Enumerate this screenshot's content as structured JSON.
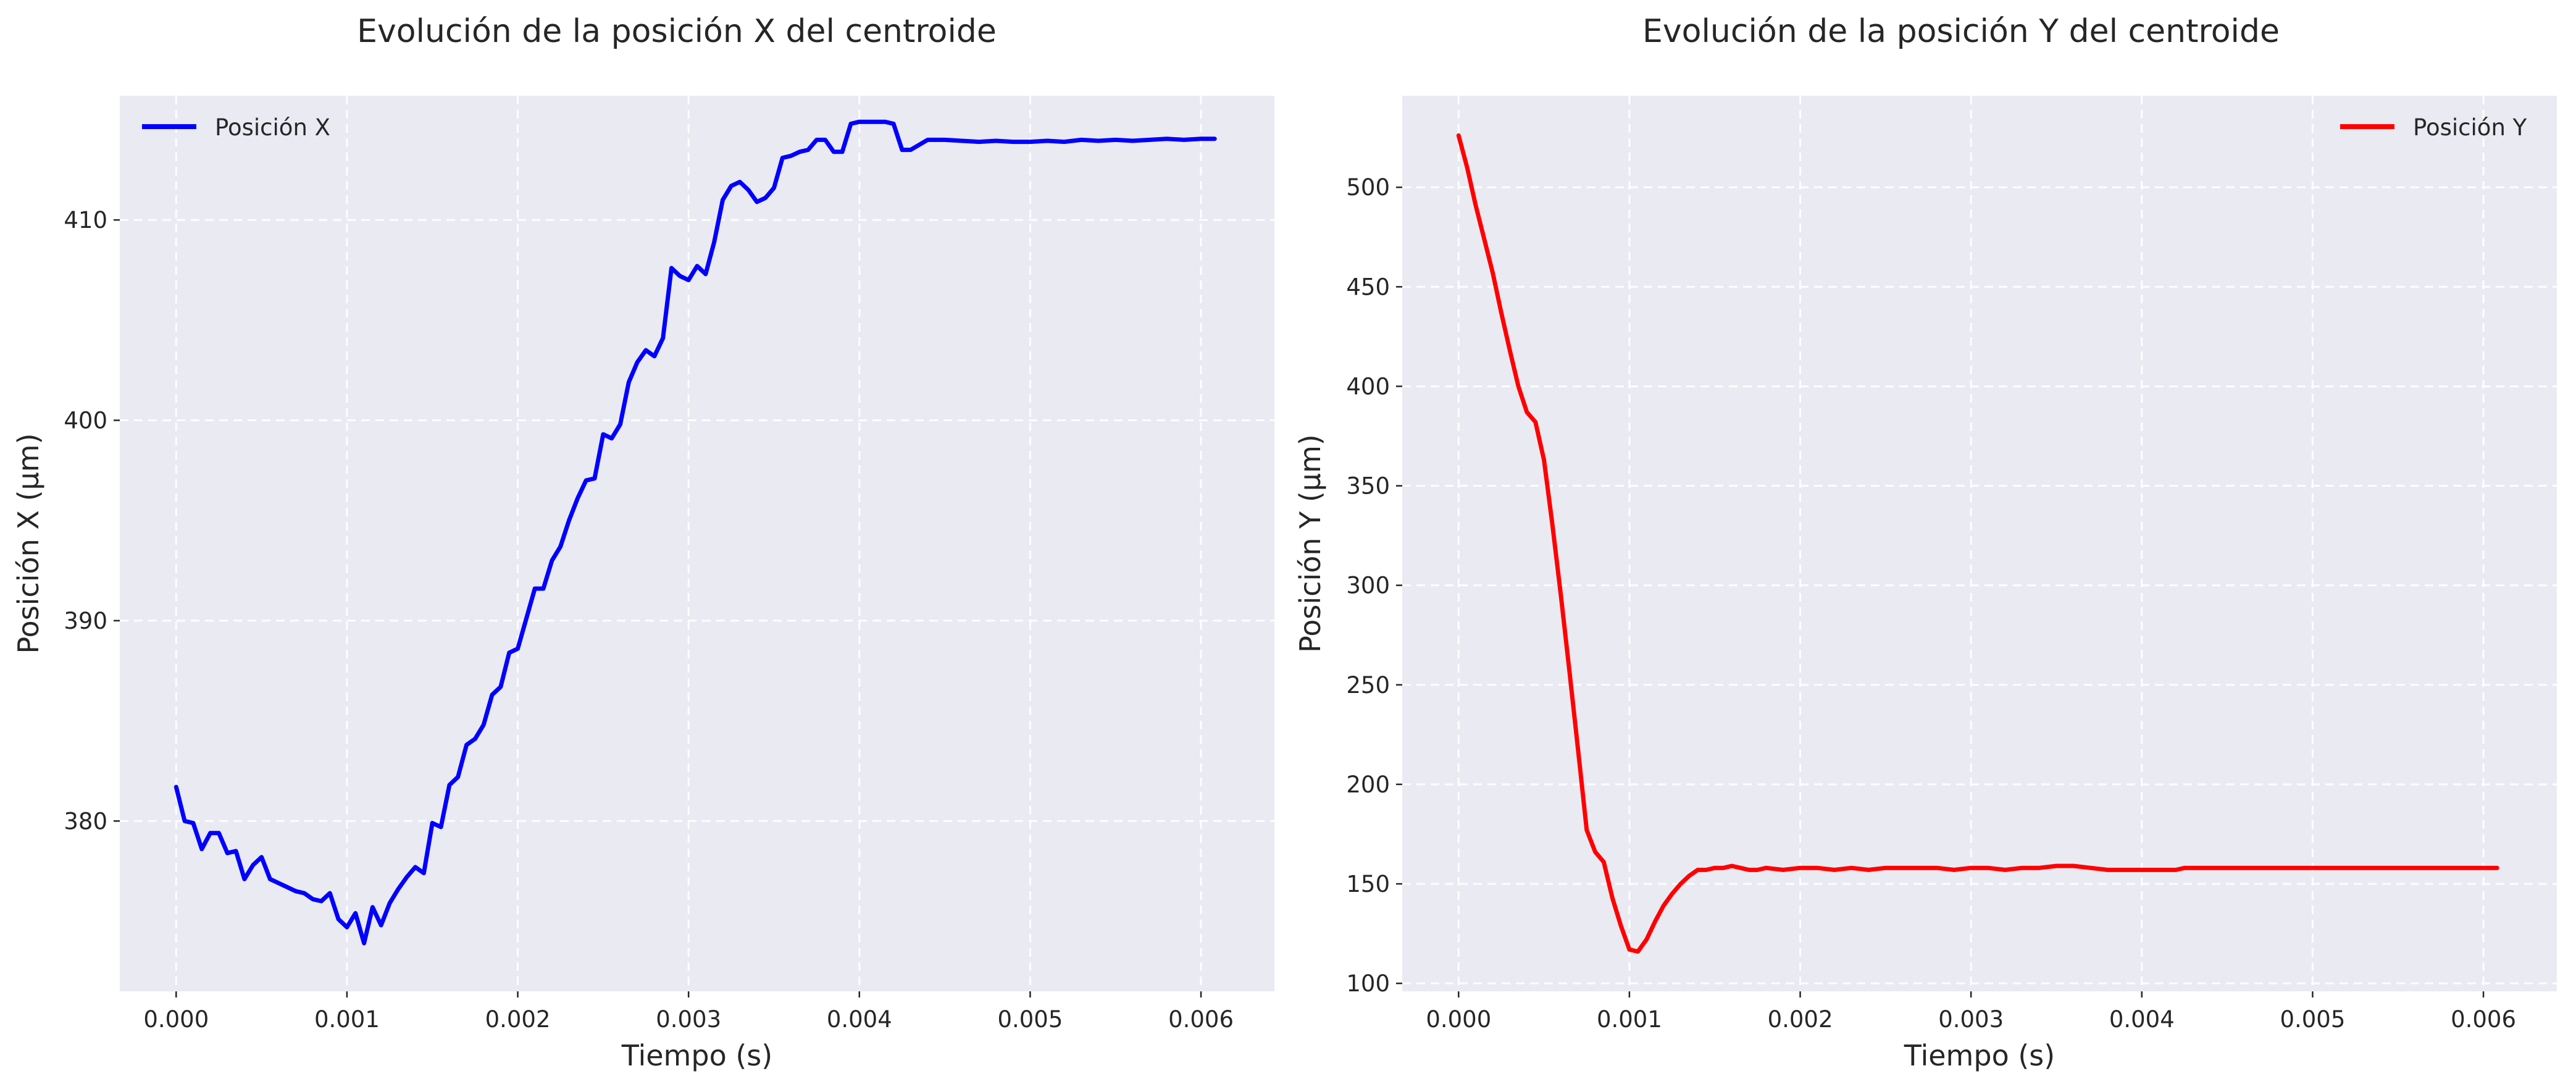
{
  "chart_data": [
    {
      "type": "line",
      "title": "Evolución de la posición X del centroide",
      "xlabel": "Tiempo (s)",
      "ylabel": "Posición X (µm)",
      "xlim": [
        -0.00033,
        0.00643
      ],
      "ylim": [
        371.5,
        416.2
      ],
      "xticks": [
        0.0,
        0.001,
        0.002,
        0.003,
        0.004,
        0.005,
        0.006
      ],
      "xtick_labels": [
        "0.000",
        "0.001",
        "0.002",
        "0.003",
        "0.004",
        "0.005",
        "0.006"
      ],
      "yticks": [
        380,
        390,
        400,
        410
      ],
      "ytick_labels": [
        "380",
        "390",
        "400",
        "410"
      ],
      "grid": true,
      "legend_position": "top-left",
      "series": [
        {
          "name": "Posición X",
          "color": "#0000ff",
          "x": [
            0.0,
            5e-05,
            0.0001,
            0.00015,
            0.0002,
            0.00025,
            0.0003,
            0.00035,
            0.0004,
            0.00045,
            0.0005,
            0.00055,
            0.0006,
            0.00065,
            0.0007,
            0.00075,
            0.0008,
            0.00085,
            0.0009,
            0.00095,
            0.001,
            0.00105,
            0.0011,
            0.00115,
            0.0012,
            0.00125,
            0.0013,
            0.00135,
            0.0014,
            0.00145,
            0.0015,
            0.00155,
            0.0016,
            0.00165,
            0.0017,
            0.00175,
            0.0018,
            0.00185,
            0.0019,
            0.00195,
            0.002,
            0.00205,
            0.0021,
            0.00215,
            0.0022,
            0.00225,
            0.0023,
            0.00235,
            0.0024,
            0.00245,
            0.0025,
            0.00255,
            0.0026,
            0.00265,
            0.0027,
            0.00275,
            0.0028,
            0.00285,
            0.0029,
            0.00295,
            0.003,
            0.00305,
            0.0031,
            0.00315,
            0.0032,
            0.00325,
            0.0033,
            0.00335,
            0.0034,
            0.00345,
            0.0035,
            0.00355,
            0.0036,
            0.00365,
            0.0037,
            0.00375,
            0.0038,
            0.00385,
            0.0039,
            0.00395,
            0.004,
            0.00405,
            0.0041,
            0.00415,
            0.0042,
            0.00425,
            0.0043,
            0.0044,
            0.0045,
            0.0046,
            0.0047,
            0.0048,
            0.0049,
            0.005,
            0.0051,
            0.0052,
            0.0053,
            0.0054,
            0.0055,
            0.0056,
            0.0057,
            0.0058,
            0.0059,
            0.006,
            0.00608
          ],
          "y": [
            381.7,
            380.0,
            379.9,
            378.6,
            379.4,
            379.4,
            378.4,
            378.5,
            377.1,
            377.8,
            378.2,
            377.1,
            376.9,
            376.7,
            376.5,
            376.4,
            376.1,
            376.0,
            376.4,
            375.1,
            374.7,
            375.4,
            373.9,
            375.7,
            374.8,
            375.9,
            376.6,
            377.2,
            377.7,
            377.4,
            379.9,
            379.7,
            381.8,
            382.2,
            383.8,
            384.1,
            384.8,
            386.3,
            386.7,
            388.4,
            388.6,
            390.1,
            391.6,
            391.6,
            393.0,
            393.7,
            395.0,
            396.1,
            397.0,
            397.1,
            399.3,
            399.1,
            399.8,
            401.9,
            402.9,
            403.5,
            403.2,
            404.1,
            407.6,
            407.2,
            407.0,
            407.7,
            407.3,
            408.9,
            411.0,
            411.7,
            411.9,
            411.5,
            410.9,
            411.1,
            411.6,
            413.1,
            413.2,
            413.4,
            413.5,
            414.0,
            414.0,
            413.4,
            413.4,
            414.8,
            414.9,
            414.9,
            414.9,
            414.9,
            414.8,
            413.5,
            413.5,
            414.0,
            414.0,
            413.95,
            413.9,
            413.95,
            413.9,
            413.9,
            413.95,
            413.9,
            414.0,
            413.95,
            414.0,
            413.95,
            414.0,
            414.05,
            414.0,
            414.05,
            414.05
          ]
        }
      ]
    },
    {
      "type": "line",
      "title": "Evolución de la posición Y del centroide",
      "xlabel": "Tiempo (s)",
      "ylabel": "Posición Y (µm)",
      "xlim": [
        -0.00033,
        0.00643
      ],
      "ylim": [
        96.0,
        546.0
      ],
      "xticks": [
        0.0,
        0.001,
        0.002,
        0.003,
        0.004,
        0.005,
        0.006
      ],
      "xtick_labels": [
        "0.000",
        "0.001",
        "0.002",
        "0.003",
        "0.004",
        "0.005",
        "0.006"
      ],
      "yticks": [
        100,
        150,
        200,
        250,
        300,
        350,
        400,
        450,
        500
      ],
      "ytick_labels": [
        "100",
        "150",
        "200",
        "250",
        "300",
        "350",
        "400",
        "450",
        "500"
      ],
      "grid": true,
      "legend_position": "top-right",
      "series": [
        {
          "name": "Posición Y",
          "color": "#ff0000",
          "x": [
            0.0,
            5e-05,
            0.0001,
            0.00015,
            0.0002,
            0.00025,
            0.0003,
            0.00035,
            0.0004,
            0.00045,
            0.0005,
            0.00055,
            0.0006,
            0.00065,
            0.0007,
            0.00075,
            0.0008,
            0.00085,
            0.0009,
            0.00095,
            0.001,
            0.00105,
            0.0011,
            0.00115,
            0.0012,
            0.00125,
            0.0013,
            0.00135,
            0.0014,
            0.00145,
            0.0015,
            0.00155,
            0.0016,
            0.00165,
            0.0017,
            0.00175,
            0.0018,
            0.0019,
            0.002,
            0.0021,
            0.0022,
            0.0023,
            0.0024,
            0.0025,
            0.0026,
            0.0027,
            0.0028,
            0.0029,
            0.003,
            0.0031,
            0.0032,
            0.0033,
            0.0034,
            0.0035,
            0.0036,
            0.0037,
            0.0038,
            0.0039,
            0.004,
            0.0041,
            0.0042,
            0.00425,
            0.0043,
            0.0044,
            0.0045,
            0.0046,
            0.0047,
            0.0048,
            0.0049,
            0.005,
            0.0052,
            0.0054,
            0.0056,
            0.0058,
            0.006,
            0.00608
          ],
          "y": [
            526.0,
            510.0,
            491.0,
            474.0,
            457.0,
            437.0,
            418.0,
            400.0,
            387.0,
            382.0,
            363.0,
            330.0,
            294.0,
            256.0,
            217.0,
            177.0,
            166.0,
            161.0,
            143.0,
            129.0,
            117.0,
            116.0,
            122.0,
            131.0,
            139.0,
            145.0,
            150.0,
            154.0,
            157.0,
            157.0,
            158.0,
            158.0,
            159.0,
            158.0,
            157.0,
            157.0,
            158.0,
            157.0,
            158.0,
            158.0,
            157.0,
            158.0,
            157.0,
            158.0,
            158.0,
            158.0,
            158.0,
            157.0,
            158.0,
            158.0,
            157.0,
            158.0,
            158.0,
            159.0,
            159.0,
            158.0,
            157.0,
            157.0,
            157.0,
            157.0,
            157.0,
            158.0,
            158.0,
            158.0,
            158.0,
            158.0,
            158.0,
            158.0,
            158.0,
            158.0,
            158.0,
            158.0,
            158.0,
            158.0,
            158.0,
            158.0
          ]
        }
      ]
    }
  ]
}
